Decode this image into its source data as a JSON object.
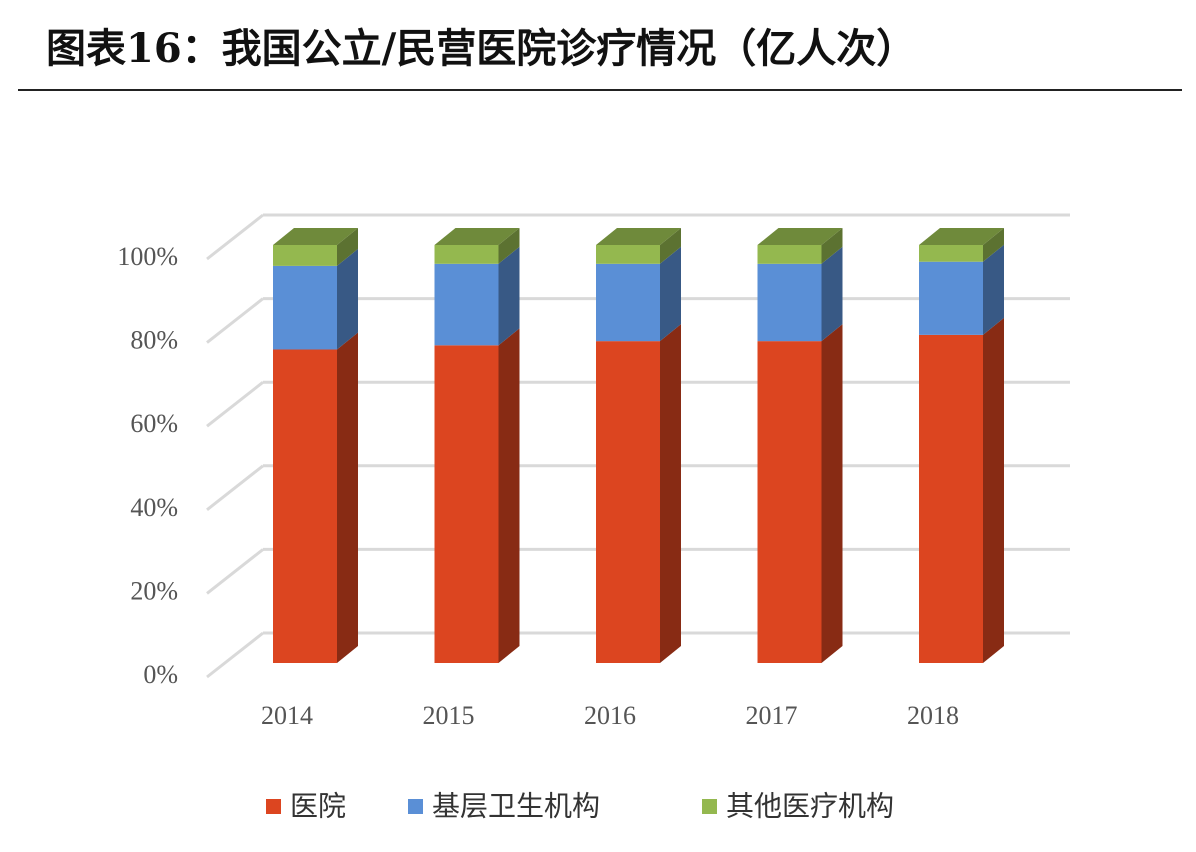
{
  "chart_data": {
    "type": "bar3d-stacked",
    "title": "图表16：我国公立/民营医院诊疗情况（亿人次）",
    "categories": [
      "2014",
      "2015",
      "2016",
      "2017",
      "2018"
    ],
    "series": [
      {
        "name": "医院",
        "color": "#dc4520",
        "values": [
          75,
          76,
          77,
          77,
          78.5
        ]
      },
      {
        "name": "基层卫生机构",
        "color": "#5a8fd6",
        "values": [
          20,
          19.5,
          18.5,
          18.5,
          17.5
        ]
      },
      {
        "name": "其他医疗机构",
        "color": "#94b84f",
        "values": [
          5,
          4.5,
          4.5,
          4.5,
          4
        ]
      }
    ],
    "ylim": [
      0,
      100
    ],
    "yticks": [
      {
        "value": 0,
        "label": "0%"
      },
      {
        "value": 20,
        "label": "20%"
      },
      {
        "value": 40,
        "label": "40%"
      },
      {
        "value": 60,
        "label": "60%"
      },
      {
        "value": 80,
        "label": "80%"
      },
      {
        "value": 100,
        "label": "100%"
      }
    ],
    "grid": true,
    "legend": "bottom"
  }
}
